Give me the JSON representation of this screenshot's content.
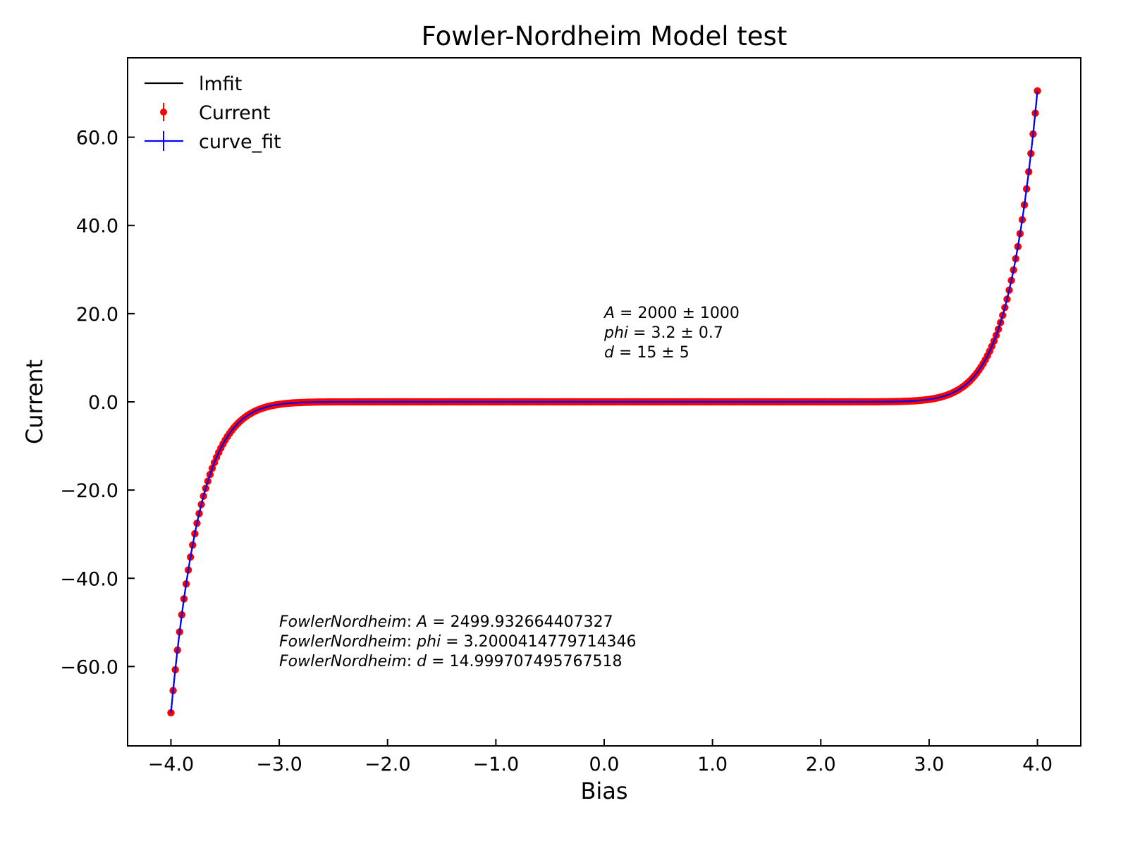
{
  "chart_data": {
    "type": "scatter",
    "title": "Fowler-Nordheim Model test",
    "xlabel": "Bias",
    "ylabel": "Current",
    "xlim": [
      -4.4,
      4.4
    ],
    "ylim": [
      -78,
      78
    ],
    "grid": false,
    "legend": "top-left",
    "x_ticks": [
      -4.0,
      -3.0,
      -2.0,
      -1.0,
      0.0,
      1.0,
      2.0,
      3.0,
      4.0
    ],
    "x_tick_labels": [
      "−4.0",
      "−3.0",
      "−2.0",
      "−1.0",
      "0.0",
      "1.0",
      "2.0",
      "3.0",
      "4.0"
    ],
    "y_ticks": [
      -60.0,
      -40.0,
      -20.0,
      0.0,
      20.0,
      40.0,
      60.0
    ],
    "y_tick_labels": [
      "−60.0",
      "−40.0",
      "−20.0",
      "0.0",
      "20.0",
      "40.0",
      "60.0"
    ],
    "model": {
      "name": "FowlerNordheim",
      "A": 2499.932664407327,
      "phi": 3.2000414779714346,
      "d": 14.999707495767518,
      "x_range": [
        -4.0,
        4.0
      ],
      "n_points": 400
    },
    "series": [
      {
        "name": "lmfit",
        "kind": "line",
        "color": "#000000"
      },
      {
        "name": "Current",
        "kind": "errorbar-points",
        "color": "#ff0000"
      },
      {
        "name": "curve_fit",
        "kind": "errorbar-line",
        "color": "#0000ff"
      }
    ],
    "annotations": {
      "curve_fit_params": [
        {
          "name": "A",
          "text": " = 2000 ± 1000"
        },
        {
          "name": "phi",
          "text": " = 3.2 ± 0.7"
        },
        {
          "name": "d",
          "text": " = 15 ± 5"
        }
      ],
      "lmfit_params": [
        {
          "prefix": "FowlerNordheim",
          "name": "A",
          "text": " = 2499.932664407327"
        },
        {
          "prefix": "FowlerNordheim",
          "name": "phi",
          "text": " = 3.2000414779714346"
        },
        {
          "prefix": "FowlerNordheim",
          "name": "d",
          "text": " = 14.999707495767518"
        }
      ]
    }
  }
}
